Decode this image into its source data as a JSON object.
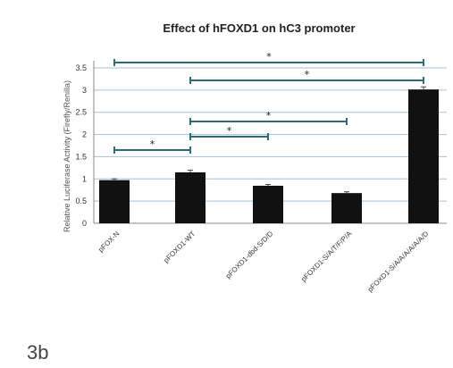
{
  "panel_label": "3b",
  "chart_data": {
    "type": "bar",
    "title": "Effect of hFOXD1 on hC3 promoter",
    "ylabel": "Relative Luciferase Activity (Firefly/Renilla)",
    "xlabel": "",
    "categories": [
      "pFOX-N",
      "pFOXD1-WT",
      "pFOXD1-dbd-S/D/D",
      "pFOXD1-S/A/T/F/P/A",
      "pFOXD1-S/A/A/A/A/A/A/D"
    ],
    "values": [
      1.0,
      1.18,
      0.87,
      0.7,
      3.1
    ],
    "error": [
      0.03,
      0.05,
      0.03,
      0.03,
      0.06
    ],
    "ylim": [
      0,
      3.6
    ],
    "yticks": [
      "0",
      "0.5",
      "1",
      "1.5",
      "2",
      "2.5",
      "3",
      "3.5"
    ],
    "grid": true,
    "bar_color": "#111111",
    "grid_color": "#9ec3de",
    "significance": [
      {
        "from": 0,
        "to": 4,
        "label": "*"
      },
      {
        "from": 1,
        "to": 4,
        "label": "*"
      },
      {
        "from": 1,
        "to": 3,
        "label": "*"
      },
      {
        "from": 1,
        "to": 2,
        "label": "*"
      },
      {
        "from": 0,
        "to": 1,
        "label": "*"
      }
    ]
  }
}
